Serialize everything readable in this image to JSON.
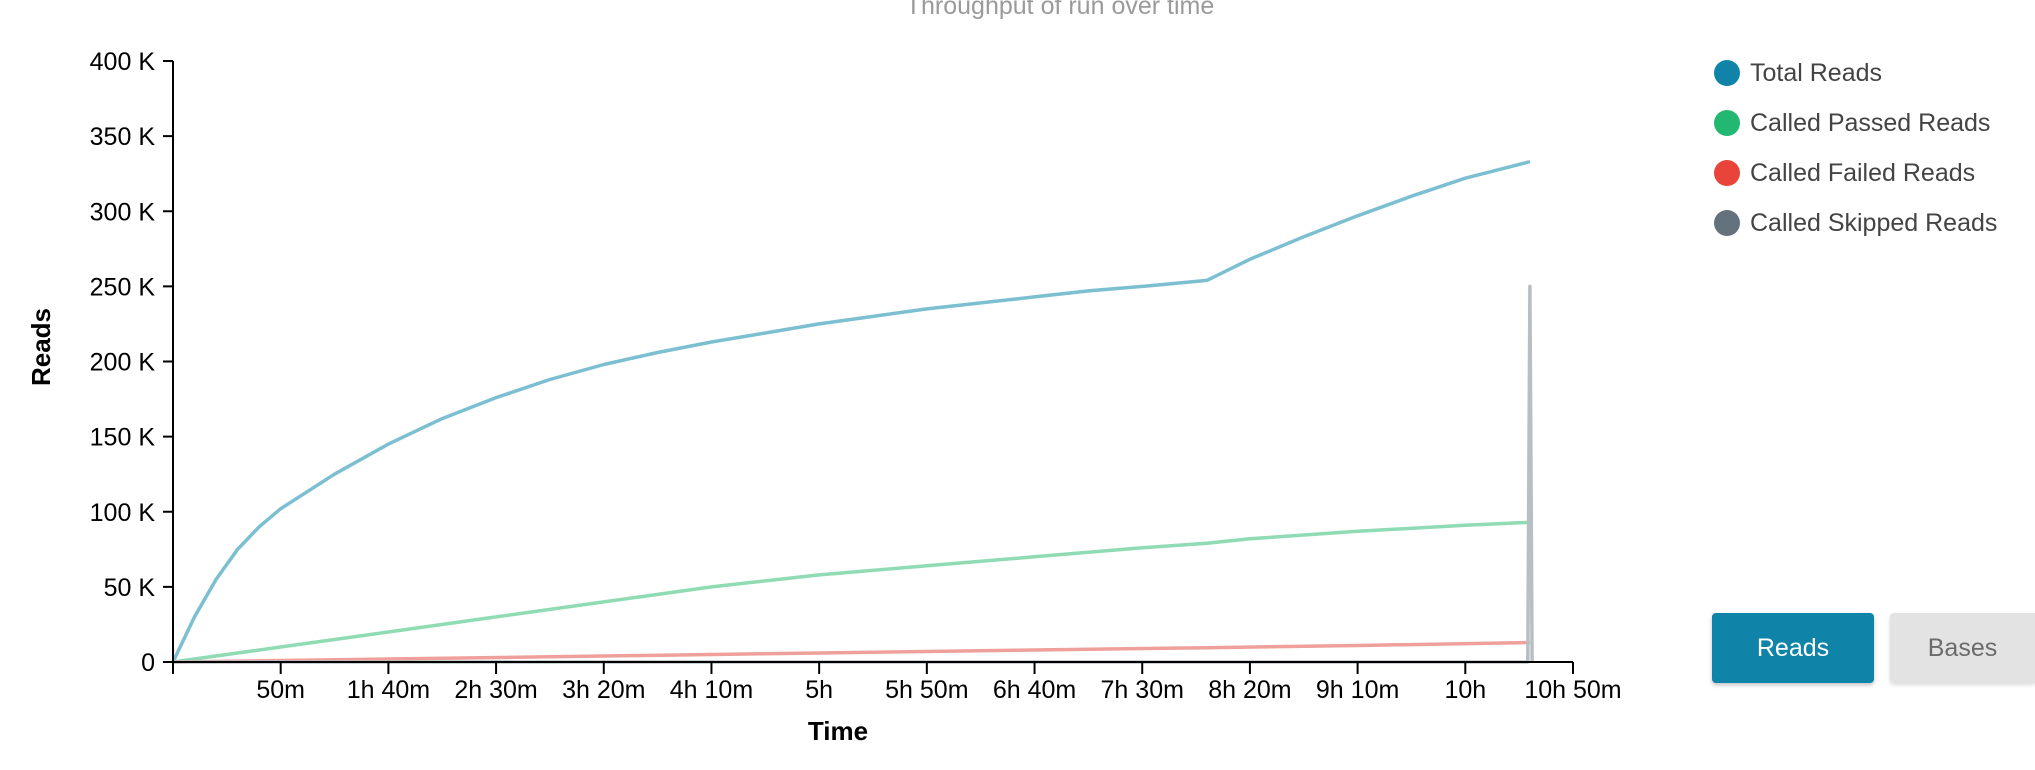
{
  "colors": {
    "total": "#7bbfd1",
    "passed": "#8fdbb4",
    "failed": "#f0a09a",
    "skipped": "#b7bec4",
    "legend_total": "#0f84a8",
    "legend_passed": "#22b872",
    "legend_failed": "#e8443a",
    "legend_skipped": "#63727c",
    "button_active": "#0f84a8"
  },
  "legend": [
    {
      "label": "Total Reads",
      "color_key": "legend_total"
    },
    {
      "label": "Called Passed Reads",
      "color_key": "legend_passed"
    },
    {
      "label": "Called Failed Reads",
      "color_key": "legend_failed"
    },
    {
      "label": "Called Skipped Reads",
      "color_key": "legend_skipped"
    }
  ],
  "buttons": {
    "reads": "Reads",
    "bases": "Bases"
  },
  "chart_data": {
    "type": "line",
    "title": "Throughput of run over time",
    "xlabel": "Time",
    "ylabel": "Reads",
    "x_unit": "minutes",
    "xlim": [
      0,
      650
    ],
    "ylim": [
      0,
      400000
    ],
    "y_ticks": [
      {
        "value": 0,
        "label": "0"
      },
      {
        "value": 50000,
        "label": "50 K"
      },
      {
        "value": 100000,
        "label": "100 K"
      },
      {
        "value": 150000,
        "label": "150 K"
      },
      {
        "value": 200000,
        "label": "200 K"
      },
      {
        "value": 250000,
        "label": "250 K"
      },
      {
        "value": 300000,
        "label": "300 K"
      },
      {
        "value": 350000,
        "label": "350 K"
      },
      {
        "value": 400000,
        "label": "400 K"
      }
    ],
    "x_ticks": [
      {
        "value": 50,
        "label": "50m"
      },
      {
        "value": 100,
        "label": "1h 40m"
      },
      {
        "value": 150,
        "label": "2h 30m"
      },
      {
        "value": 200,
        "label": "3h 20m"
      },
      {
        "value": 250,
        "label": "4h 10m"
      },
      {
        "value": 300,
        "label": "5h"
      },
      {
        "value": 350,
        "label": "5h 50m"
      },
      {
        "value": 400,
        "label": "6h 40m"
      },
      {
        "value": 450,
        "label": "7h 30m"
      },
      {
        "value": 500,
        "label": "8h 20m"
      },
      {
        "value": 550,
        "label": "9h 10m"
      },
      {
        "value": 600,
        "label": "10h"
      },
      {
        "value": 650,
        "label": "10h 50m"
      }
    ],
    "series": [
      {
        "name": "Total Reads",
        "color_key": "total",
        "points": [
          [
            0,
            0
          ],
          [
            10,
            30000
          ],
          [
            20,
            55000
          ],
          [
            30,
            75000
          ],
          [
            40,
            90000
          ],
          [
            50,
            102000
          ],
          [
            75,
            125000
          ],
          [
            100,
            145000
          ],
          [
            125,
            162000
          ],
          [
            150,
            176000
          ],
          [
            175,
            188000
          ],
          [
            200,
            198000
          ],
          [
            225,
            206000
          ],
          [
            250,
            213000
          ],
          [
            275,
            219000
          ],
          [
            300,
            225000
          ],
          [
            325,
            230000
          ],
          [
            350,
            235000
          ],
          [
            375,
            239000
          ],
          [
            400,
            243000
          ],
          [
            425,
            247000
          ],
          [
            450,
            250000
          ],
          [
            480,
            254000
          ],
          [
            500,
            268000
          ],
          [
            525,
            283000
          ],
          [
            550,
            297000
          ],
          [
            575,
            310000
          ],
          [
            600,
            322000
          ],
          [
            630,
            333000
          ]
        ]
      },
      {
        "name": "Called Passed Reads",
        "color_key": "passed",
        "points": [
          [
            0,
            0
          ],
          [
            50,
            10000
          ],
          [
            100,
            20000
          ],
          [
            150,
            30000
          ],
          [
            200,
            40000
          ],
          [
            250,
            50000
          ],
          [
            300,
            58000
          ],
          [
            350,
            64000
          ],
          [
            400,
            70000
          ],
          [
            450,
            76000
          ],
          [
            480,
            79000
          ],
          [
            500,
            82000
          ],
          [
            550,
            87000
          ],
          [
            600,
            91000
          ],
          [
            630,
            93000
          ]
        ]
      },
      {
        "name": "Called Failed Reads",
        "color_key": "failed",
        "points": [
          [
            0,
            0
          ],
          [
            100,
            2000
          ],
          [
            200,
            4000
          ],
          [
            300,
            6000
          ],
          [
            400,
            8000
          ],
          [
            480,
            9500
          ],
          [
            550,
            11000
          ],
          [
            630,
            13000
          ]
        ]
      },
      {
        "name": "Called Skipped Reads",
        "color_key": "skipped",
        "points": [
          [
            0,
            0
          ],
          [
            629,
            0
          ],
          [
            630,
            250000
          ],
          [
            631,
            0
          ]
        ]
      }
    ]
  }
}
